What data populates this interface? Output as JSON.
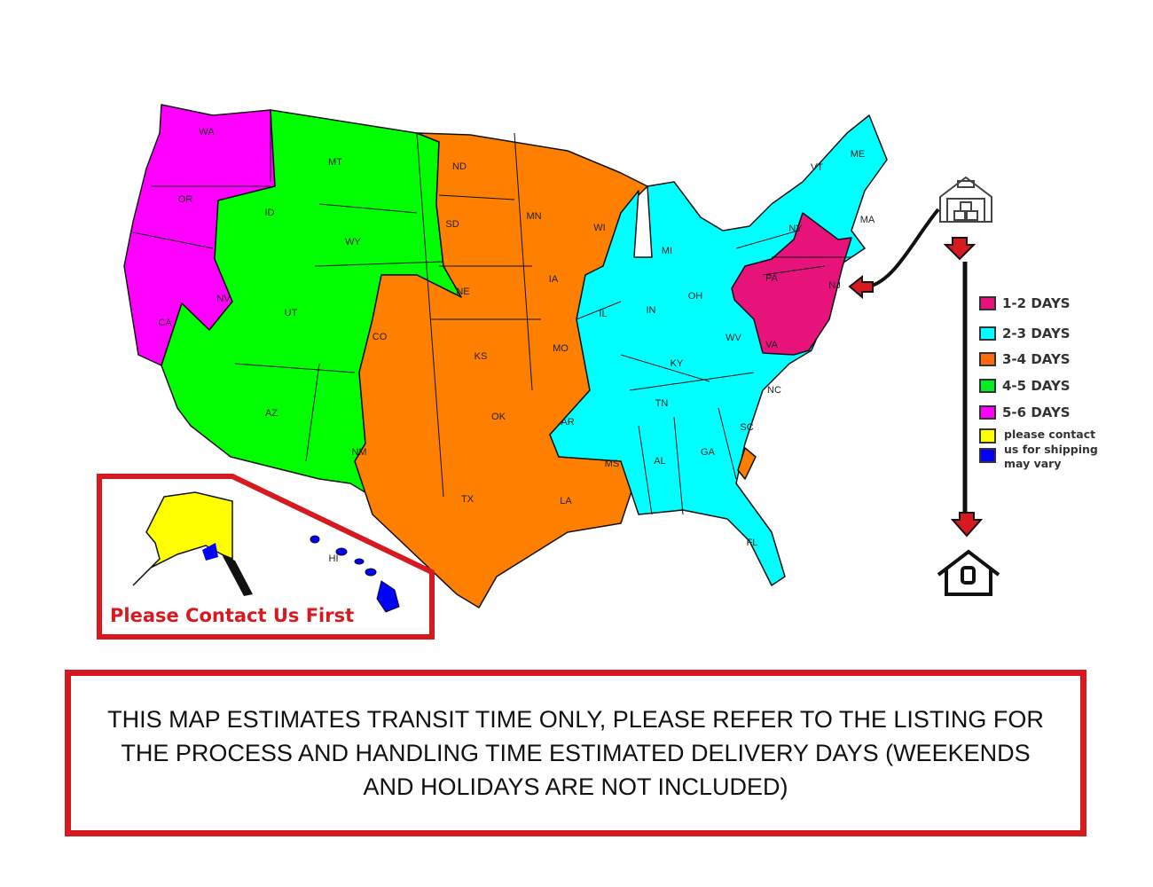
{
  "colors": {
    "1-2": "#e8137a",
    "2-3": "#00ffff",
    "3-4": "#ff7f00",
    "4-5": "#00ff00",
    "5-6": "#ff00ff",
    "contact": "#ffff00",
    "vary": "#0000ff",
    "frame": "#d71920"
  },
  "states": [
    "WA",
    "OR",
    "CA",
    "ID",
    "NV",
    "MT",
    "WY",
    "UT",
    "AZ",
    "CO",
    "NM",
    "ND",
    "SD",
    "NE",
    "KS",
    "OK",
    "TX",
    "MN",
    "IA",
    "MO",
    "AR",
    "LA",
    "WI",
    "IL",
    "MI",
    "IN",
    "OH",
    "KY",
    "TN",
    "MS",
    "AL",
    "GA",
    "FL",
    "SC",
    "NC",
    "VA",
    "WV",
    "PA",
    "NY",
    "VT",
    "ME",
    "MA",
    "NJ",
    "AK",
    "HI"
  ],
  "legend": [
    {
      "label": "1-2 DAYS",
      "color": "#e8137a"
    },
    {
      "label": "2-3 DAYS",
      "color": "#00ffff"
    },
    {
      "label": "3-4 DAYS",
      "color": "#ff6a10"
    },
    {
      "label": "4-5 DAYS",
      "color": "#00ee22"
    },
    {
      "label": "5-6 DAYS",
      "color": "#ff00ff"
    }
  ],
  "legend_note": {
    "text": "please contact us for shipping may vary",
    "line1": "please contact",
    "line2": "us for shipping",
    "line3": "may vary",
    "colors": [
      "#ffff00",
      "#0000ff"
    ]
  },
  "icons": {
    "origin": "warehouse-icon",
    "destination": "house-icon",
    "flow": "arrow-down-icon"
  },
  "inset": {
    "label": "Please Contact Us First"
  },
  "notice": "THIS MAP ESTIMATES TRANSIT TIME ONLY, PLEASE REFER TO THE LISTING FOR THE PROCESS AND HANDLING TIME ESTIMATED DELIVERY DAYS (WEEKENDS AND HOLIDAYS ARE NOT INCLUDED)"
}
